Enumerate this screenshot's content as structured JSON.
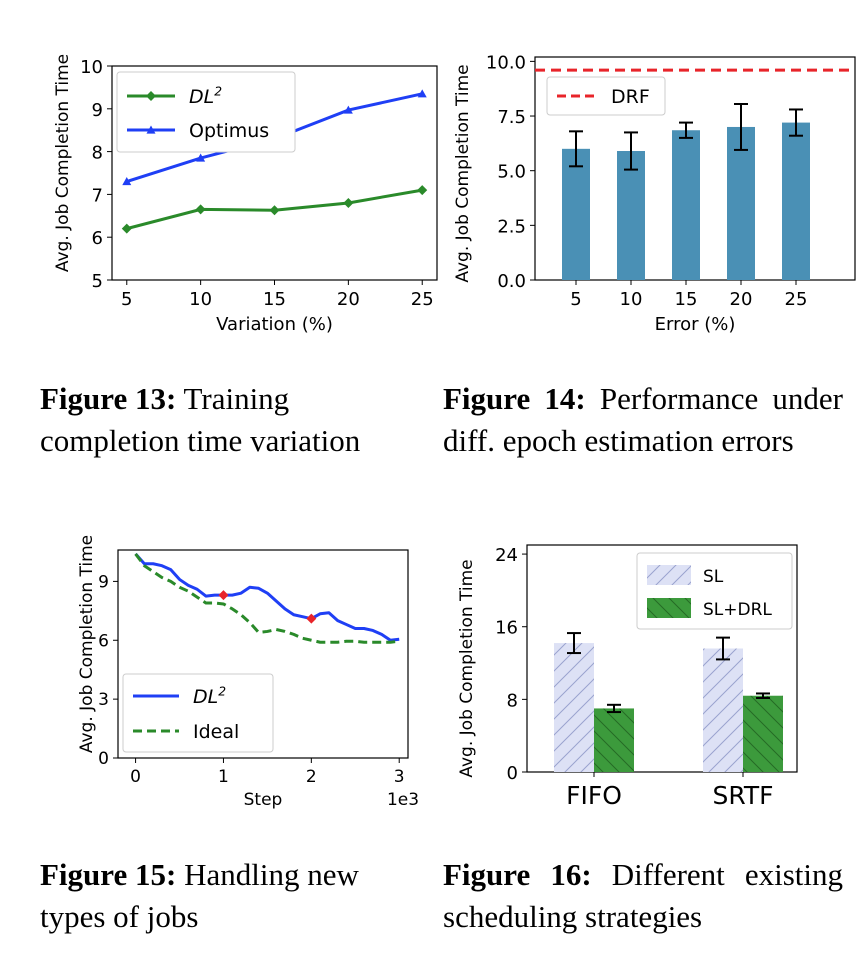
{
  "captions": {
    "fig13": {
      "label": "Figure 13:",
      "text": "Training completion time variation"
    },
    "fig14": {
      "label": "Figure 14:",
      "text": "Performance under diff. epoch estimation errors"
    },
    "fig15": {
      "label": "Figure 15:",
      "text": "Handling new types of jobs"
    },
    "fig16": {
      "label": "Figure 16:",
      "text": "Different existing scheduling strategies"
    }
  },
  "colors": {
    "green": "#2a8a2a",
    "blue": "#1f3ff5",
    "steel": "#4a90b5",
    "red": "#e8242a",
    "hatch": "#dde1f5"
  },
  "chart_data": [
    {
      "id": "fig13",
      "type": "line",
      "xlabel": "Variation (%)",
      "ylabel": "Avg. Job Completion Time",
      "x": [
        5,
        10,
        15,
        20,
        25
      ],
      "xlim": [
        4,
        26
      ],
      "ylim": [
        5,
        10
      ],
      "xticks": [
        "5",
        "10",
        "15",
        "20",
        "25"
      ],
      "yticks": [
        "5",
        "6",
        "7",
        "8",
        "9",
        "10"
      ],
      "series": [
        {
          "name": "DL",
          "sup": "2",
          "values": [
            6.2,
            6.65,
            6.63,
            6.8,
            7.1
          ],
          "color": "#2a8a2a",
          "marker": "diamond"
        },
        {
          "name": "Optimus",
          "values": [
            7.3,
            7.85,
            8.3,
            8.97,
            9.35
          ],
          "color": "#1f3ff5",
          "marker": "triangle"
        }
      ],
      "legend": "top-left"
    },
    {
      "id": "fig14",
      "type": "bar",
      "xlabel": "Error (%)",
      "ylabel": "Avg. Job Completion Time",
      "categories": [
        "5",
        "10",
        "15",
        "20",
        "25"
      ],
      "values": [
        6.0,
        5.9,
        6.85,
        7.0,
        7.2
      ],
      "errors": [
        0.8,
        0.85,
        0.35,
        1.05,
        0.6
      ],
      "ylim": [
        0,
        10.2
      ],
      "yticks": [
        "0.0",
        "2.5",
        "5.0",
        "7.5",
        "10.0"
      ],
      "reference_line": {
        "name": "DRF",
        "value": 9.6,
        "style": "dashed",
        "color": "#e8242a"
      },
      "legend": "top-left"
    },
    {
      "id": "fig15",
      "type": "line",
      "xlabel": "Step",
      "x_multiplier": "1e3",
      "ylabel": "Avg. Job Completion Time",
      "xlim": [
        -0.2,
        3.1
      ],
      "ylim": [
        0,
        10.6
      ],
      "xticks": [
        "0",
        "1",
        "2",
        "3"
      ],
      "yticks": [
        "0",
        "3",
        "6",
        "9"
      ],
      "series": [
        {
          "name": "DL",
          "sup": "2",
          "style": "solid",
          "color": "#1f3ff5",
          "x": [
            0,
            0.1,
            0.2,
            0.3,
            0.4,
            0.5,
            0.6,
            0.7,
            0.8,
            0.9,
            1.0,
            1.1,
            1.2,
            1.3,
            1.4,
            1.5,
            1.6,
            1.7,
            1.8,
            1.9,
            2.0,
            2.1,
            2.2,
            2.3,
            2.4,
            2.5,
            2.6,
            2.7,
            2.8,
            2.9,
            3.0
          ],
          "values": [
            10.4,
            9.9,
            9.9,
            9.8,
            9.6,
            9.1,
            8.8,
            8.6,
            8.25,
            8.3,
            8.3,
            8.3,
            8.4,
            8.7,
            8.65,
            8.4,
            8.0,
            7.6,
            7.3,
            7.2,
            7.1,
            7.35,
            7.4,
            7.0,
            6.8,
            6.6,
            6.6,
            6.5,
            6.3,
            6.0,
            6.05
          ]
        },
        {
          "name": "Ideal",
          "style": "dashed",
          "color": "#2a8a2a",
          "x": [
            0,
            0.1,
            0.2,
            0.3,
            0.4,
            0.5,
            0.6,
            0.7,
            0.8,
            0.9,
            1.0,
            1.1,
            1.2,
            1.3,
            1.4,
            1.5,
            1.6,
            1.7,
            1.8,
            1.9,
            2.0,
            2.1,
            2.2,
            2.3,
            2.4,
            2.5,
            2.6,
            2.7,
            2.8,
            2.9,
            3.0
          ],
          "values": [
            10.4,
            9.8,
            9.5,
            9.2,
            9.0,
            8.7,
            8.5,
            8.2,
            7.9,
            7.9,
            7.85,
            7.6,
            7.3,
            6.9,
            6.4,
            6.45,
            6.55,
            6.45,
            6.3,
            6.1,
            6.0,
            5.9,
            5.9,
            5.9,
            5.95,
            5.95,
            5.9,
            5.9,
            5.9,
            5.9,
            5.95
          ]
        }
      ],
      "markers": [
        {
          "x": 1.0,
          "y": 8.3,
          "color": "#e8242a"
        },
        {
          "x": 2.0,
          "y": 7.1,
          "color": "#e8242a"
        }
      ],
      "legend": "bottom-left"
    },
    {
      "id": "fig16",
      "type": "bar",
      "ylabel": "Avg. Job Completion Time",
      "categories": [
        "FIFO",
        "SRTF"
      ],
      "ylim": [
        0,
        25
      ],
      "yticks": [
        "0",
        "8",
        "16",
        "24"
      ],
      "series": [
        {
          "name": "SL",
          "values": [
            14.2,
            13.6
          ],
          "errors": [
            1.1,
            1.2
          ],
          "fill": "hatched-light-blue"
        },
        {
          "name": "SL+DRL",
          "values": [
            7.0,
            8.4
          ],
          "errors": [
            0.4,
            0.25
          ],
          "fill": "hatched-green"
        }
      ],
      "legend": "top-right"
    }
  ]
}
